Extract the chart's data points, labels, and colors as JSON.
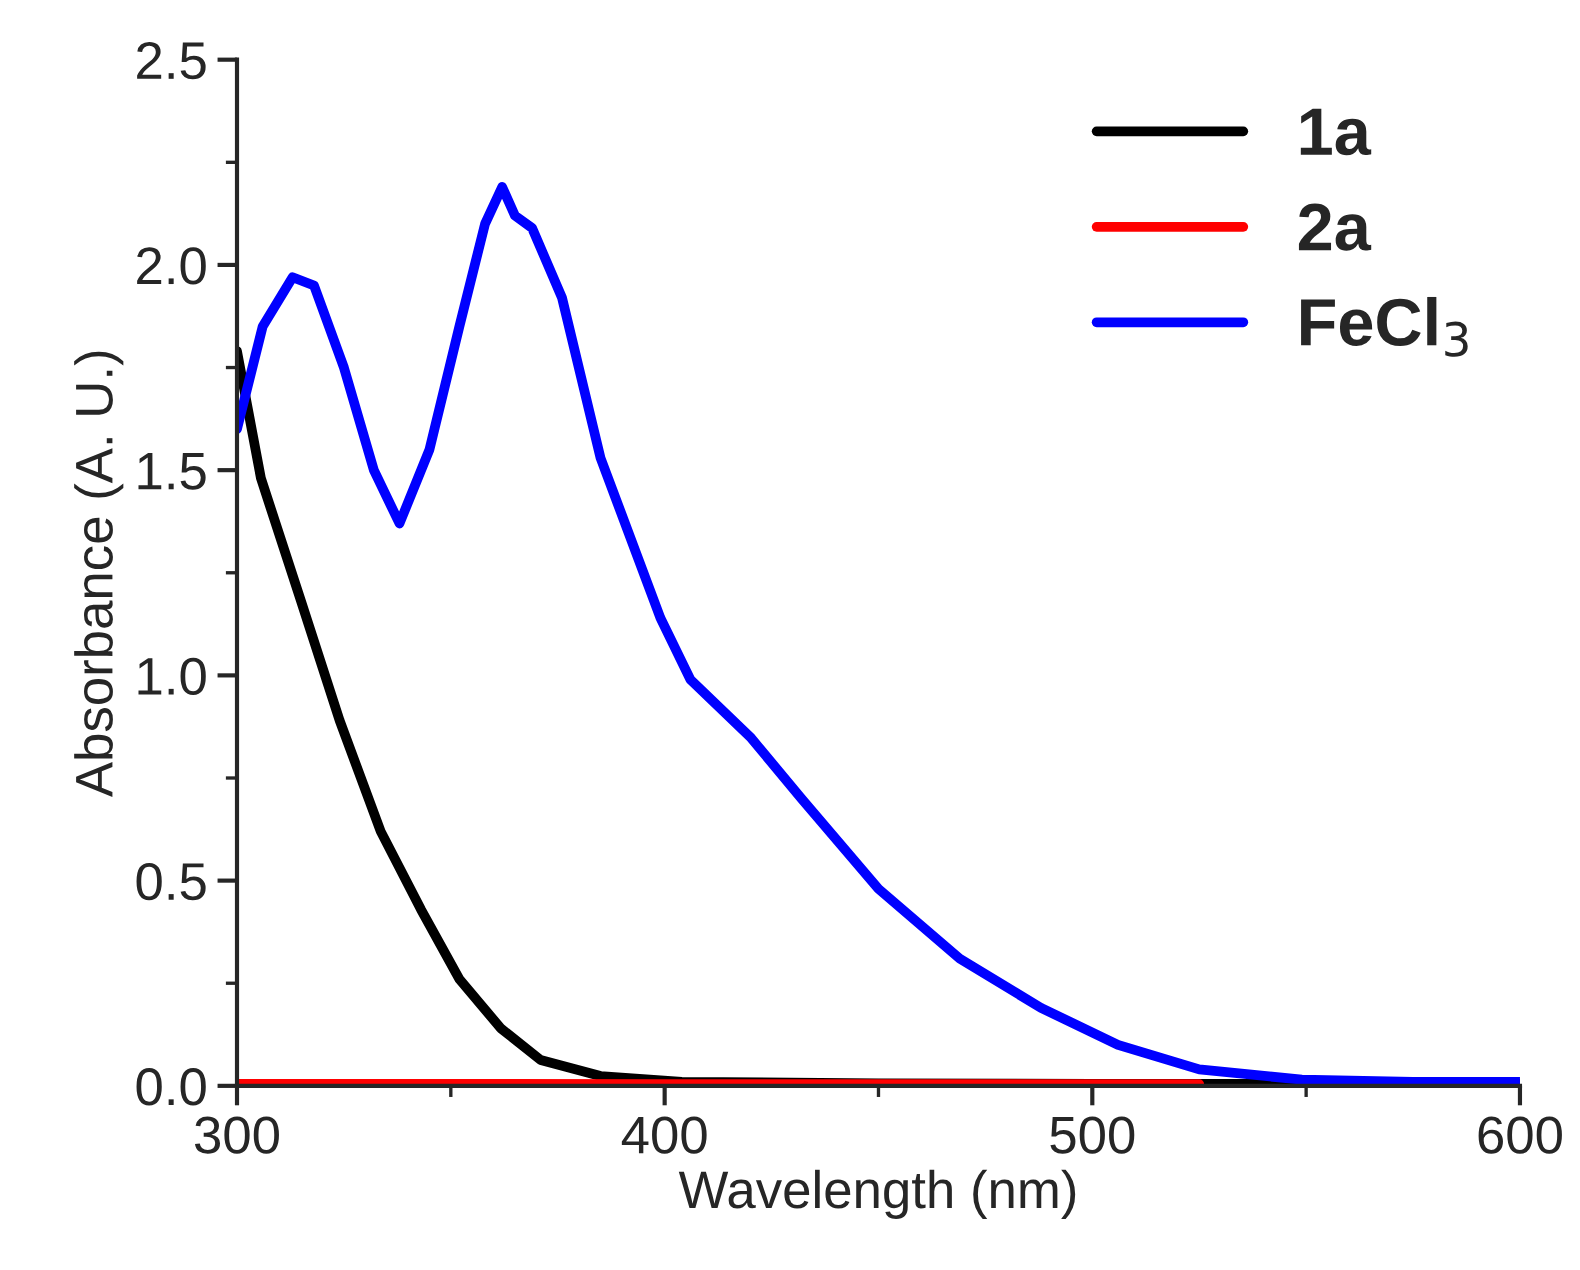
{
  "chart_data": {
    "type": "line",
    "xlabel": "Wavelength (nm)",
    "ylabel": "Absorbance (A. U.)",
    "xlim": [
      300,
      600
    ],
    "xticks": [
      300,
      400,
      500,
      600
    ],
    "ylim": [
      0,
      2.5
    ],
    "yticks": [
      {
        "value": 0,
        "label": "0.0"
      },
      0.5,
      {
        "value": 1,
        "label": "1.0"
      },
      1.5,
      {
        "value": 2,
        "label": "2.0"
      },
      2.5
    ],
    "grid": false,
    "legend": "top right",
    "marker": "none",
    "line_style": "solid",
    "series": [
      {
        "name": "1a",
        "color": "#000000",
        "x": [
          300,
          305.6,
          315,
          324,
          333.6,
          343,
          352,
          361.7,
          371,
          385,
          404,
          450,
          500,
          550,
          600
        ],
        "values": [
          1.79,
          1.48,
          1.18,
          0.89,
          0.62,
          0.43,
          0.26,
          0.14,
          0.063,
          0.024,
          0.01,
          0.006,
          0.005,
          0.005,
          0.005
        ]
      },
      {
        "name": "2a",
        "color": "#ff0000",
        "x": [
          300,
          350,
          400,
          450,
          500,
          525
        ],
        "values": [
          0.005,
          0.005,
          0.004,
          0.004,
          0.004,
          0.004
        ]
      },
      {
        "name": "FeCl$_{3}$",
        "color": "#0000ff",
        "x": [
          300,
          306,
          313,
          318,
          325,
          332,
          338,
          345,
          352,
          358,
          362,
          365,
          369,
          376,
          385,
          399,
          406,
          420,
          432,
          450,
          469,
          488,
          506,
          525,
          549,
          575,
          600
        ],
        "values": [
          1.6,
          1.85,
          1.97,
          1.95,
          1.75,
          1.5,
          1.37,
          1.55,
          1.85,
          2.1,
          2.19,
          2.12,
          2.09,
          1.92,
          1.53,
          1.14,
          0.99,
          0.85,
          0.7,
          0.48,
          0.31,
          0.19,
          0.1,
          0.04,
          0.015,
          0.01,
          0.01
        ]
      }
    ]
  }
}
